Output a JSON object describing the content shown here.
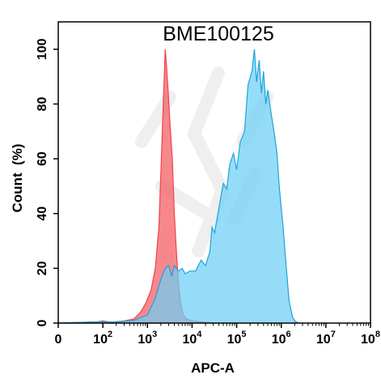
{
  "chart_data": {
    "type": "area",
    "title": "BME100125",
    "xlabel": "APC-A",
    "ylabel": "Count  (%)",
    "x_scale": "log",
    "xlim": [
      0,
      100000000
    ],
    "ylim": [
      0,
      110
    ],
    "x_ticks": [
      {
        "value": 0,
        "base": "0",
        "exp": ""
      },
      {
        "value": 100,
        "base": "10",
        "exp": "2"
      },
      {
        "value": 1000,
        "base": "10",
        "exp": "3"
      },
      {
        "value": 10000,
        "base": "10",
        "exp": "4"
      },
      {
        "value": 100000,
        "base": "10",
        "exp": "5"
      },
      {
        "value": 1000000,
        "base": "10",
        "exp": "6"
      },
      {
        "value": 10000000,
        "base": "10",
        "exp": "7"
      },
      {
        "value": 100000000,
        "base": "10",
        "exp": "8"
      }
    ],
    "y_ticks": [
      0,
      20,
      40,
      60,
      80,
      100
    ],
    "series": [
      {
        "color": "#f0424a",
        "fill": "#f25a60",
        "points": [
          [
            1,
            0
          ],
          [
            60,
            0.5
          ],
          [
            100,
            0.8
          ],
          [
            150,
            0.3
          ],
          [
            300,
            0.8
          ],
          [
            500,
            1.5
          ],
          [
            700,
            4
          ],
          [
            900,
            7
          ],
          [
            1200,
            12
          ],
          [
            1500,
            20
          ],
          [
            1800,
            35
          ],
          [
            2000,
            55
          ],
          [
            2200,
            75
          ],
          [
            2400,
            92
          ],
          [
            2500,
            100
          ],
          [
            2650,
            95
          ],
          [
            2900,
            85
          ],
          [
            3200,
            73
          ],
          [
            3600,
            60
          ],
          [
            4000,
            40
          ],
          [
            4500,
            25
          ],
          [
            5000,
            14
          ],
          [
            5600,
            7
          ],
          [
            6300,
            3
          ],
          [
            7500,
            1.5
          ],
          [
            10000,
            0.8
          ],
          [
            15000,
            0.5
          ],
          [
            30000,
            0
          ]
        ]
      },
      {
        "color": "#1ea3d9",
        "fill": "#6ccff5",
        "points": [
          [
            1,
            0
          ],
          [
            100,
            0.5
          ],
          [
            200,
            0.4
          ],
          [
            500,
            1
          ],
          [
            1000,
            3
          ],
          [
            1500,
            9
          ],
          [
            2000,
            16
          ],
          [
            2500,
            20
          ],
          [
            3000,
            21
          ],
          [
            3500,
            17
          ],
          [
            4000,
            21
          ],
          [
            5000,
            19
          ],
          [
            6000,
            20
          ],
          [
            7000,
            18
          ],
          [
            9000,
            19
          ],
          [
            12000,
            19
          ],
          [
            16000,
            23
          ],
          [
            20000,
            21
          ],
          [
            25000,
            26
          ],
          [
            28000,
            35
          ],
          [
            32000,
            33
          ],
          [
            40000,
            42
          ],
          [
            50000,
            51
          ],
          [
            60000,
            49
          ],
          [
            70000,
            58
          ],
          [
            85000,
            62
          ],
          [
            100000,
            56
          ],
          [
            120000,
            66
          ],
          [
            150000,
            70
          ],
          [
            180000,
            87
          ],
          [
            220000,
            92
          ],
          [
            250000,
            100
          ],
          [
            280000,
            88
          ],
          [
            320000,
            96
          ],
          [
            360000,
            84
          ],
          [
            400000,
            92
          ],
          [
            450000,
            80
          ],
          [
            500000,
            85
          ],
          [
            600000,
            76
          ],
          [
            700000,
            69
          ],
          [
            800000,
            62
          ],
          [
            900000,
            50
          ],
          [
            1000000,
            42
          ],
          [
            1100000,
            35
          ],
          [
            1300000,
            20
          ],
          [
            1500000,
            8
          ],
          [
            1800000,
            2
          ],
          [
            2100000,
            0.5
          ],
          [
            2500000,
            0
          ]
        ]
      }
    ]
  }
}
